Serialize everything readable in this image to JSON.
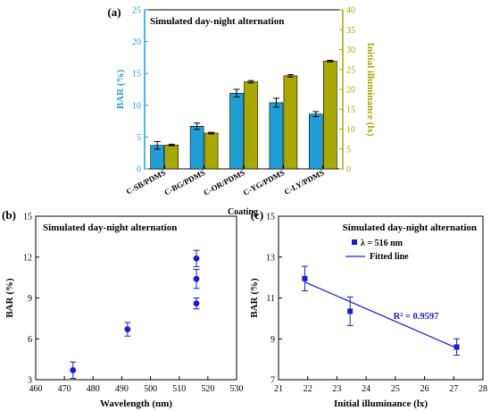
{
  "figure": {
    "panels": [
      "(a)",
      "(b)",
      "(c)"
    ]
  },
  "colors": {
    "bar_series": "#1f9fd6",
    "illum_series": "#a8a800",
    "points": "#1a1adc",
    "line": "#1a1adc",
    "axis": "#000000"
  },
  "chart_data": [
    {
      "panel": "(a)",
      "type": "bar",
      "annotation": "Simulated day-night alternation",
      "xlabel": "Coating",
      "ylabel": "BAR (%)",
      "y2label": "Initial illuminance (lx)",
      "ylim": [
        0,
        25
      ],
      "y2lim": [
        0,
        40
      ],
      "yticks": [
        0,
        5,
        10,
        15,
        20,
        25
      ],
      "y2ticks": [
        0,
        5,
        10,
        15,
        20,
        25,
        30,
        35,
        40
      ],
      "categories": [
        "C-SB/PDMS",
        "C-BG/PDMS",
        "C-OR/PDMS",
        "C-YG/PDMS",
        "C-LY/PDMS"
      ],
      "series": [
        {
          "axis": "left",
          "values": [
            3.7,
            6.7,
            11.9,
            10.4,
            8.6
          ],
          "errors": [
            0.6,
            0.5,
            0.6,
            0.7,
            0.4
          ]
        },
        {
          "axis": "right",
          "values": [
            6.0,
            9.0,
            21.9,
            23.4,
            27.1
          ],
          "errors": [
            0.2,
            0.2,
            0.3,
            0.3,
            0.2
          ]
        }
      ]
    },
    {
      "panel": "(b)",
      "type": "scatter",
      "annotation": "Simulated day-night alternation",
      "xlabel": "Wavelength (nm)",
      "ylabel": "BAR (%)",
      "xlim": [
        460,
        530
      ],
      "ylim": [
        3,
        15
      ],
      "xticks": [
        460,
        470,
        480,
        490,
        500,
        510,
        520,
        530
      ],
      "yticks": [
        3,
        6,
        9,
        12,
        15
      ],
      "points": [
        {
          "x": 473,
          "y": 3.7,
          "err": 0.6
        },
        {
          "x": 492,
          "y": 6.7,
          "err": 0.5
        },
        {
          "x": 516,
          "y": 11.9,
          "err": 0.6
        },
        {
          "x": 516,
          "y": 10.4,
          "err": 0.7
        },
        {
          "x": 516,
          "y": 8.6,
          "err": 0.4
        }
      ]
    },
    {
      "panel": "(c)",
      "type": "scatter",
      "annotation": "Simulated day-night alternation",
      "xlabel": "Initial illuminance (lx)",
      "ylabel": "BAR (%)",
      "xlim": [
        21,
        28
      ],
      "ylim": [
        7,
        15
      ],
      "xticks": [
        21,
        22,
        23,
        24,
        25,
        26,
        27,
        28
      ],
      "yticks": [
        7,
        9,
        11,
        13,
        15
      ],
      "legend": [
        {
          "label": "λ = 516 nm",
          "kind": "marker"
        },
        {
          "label": "Fitted line",
          "kind": "line"
        }
      ],
      "legend_position": "top-right",
      "r2_label": "R² = 0.9597",
      "points": [
        {
          "x": 21.9,
          "y": 11.95,
          "err": 0.6
        },
        {
          "x": 23.45,
          "y": 10.35,
          "err": 0.7
        },
        {
          "x": 27.1,
          "y": 8.6,
          "err": 0.4
        }
      ],
      "fit": {
        "x": [
          21.9,
          27.1
        ],
        "y": [
          11.78,
          8.55
        ]
      }
    }
  ]
}
